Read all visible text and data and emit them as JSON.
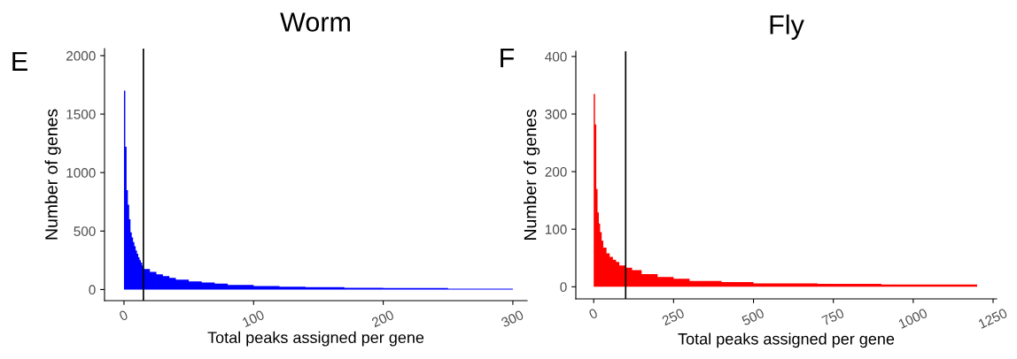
{
  "chart_data": [
    {
      "type": "histogram",
      "title": "Worm",
      "xlabel": "Total peaks assigned per gene",
      "ylabel": "Number of genes",
      "annotations": [
        "E"
      ],
      "color": "#0000ff",
      "bins": [
        0,
        1,
        2,
        3,
        4,
        5,
        6,
        7,
        8,
        9,
        10,
        11,
        12,
        13,
        14,
        15,
        20,
        25,
        30,
        35,
        40,
        50,
        60,
        70,
        80,
        100,
        120,
        140,
        170,
        200,
        250,
        300
      ],
      "values": [
        1700,
        1220,
        850,
        725,
        600,
        490,
        445,
        405,
        370,
        335,
        305,
        275,
        250,
        230,
        205,
        175,
        150,
        130,
        115,
        100,
        85,
        70,
        60,
        50,
        40,
        30,
        25,
        20,
        15,
        12,
        8
      ],
      "xlim": [
        -15,
        311
      ],
      "ylim": [
        -95,
        2060
      ],
      "xticks": [
        0,
        100,
        200,
        300
      ],
      "yticks": [
        0,
        500,
        1000,
        1500,
        2000
      ],
      "ref_lines": [
        {
          "axis": "x",
          "value": 15,
          "color": "#000000"
        }
      ],
      "grid": false
    },
    {
      "type": "histogram",
      "title": "Fly",
      "xlabel": "Total peaks assigned per gene",
      "ylabel": "Number of genes",
      "annotations": [
        "F"
      ],
      "color": "#ff0000",
      "bins": [
        0,
        4,
        8,
        12,
        16,
        20,
        25,
        30,
        40,
        50,
        60,
        70,
        80,
        100,
        120,
        150,
        200,
        250,
        300,
        400,
        500,
        700,
        900,
        1200
      ],
      "values": [
        335,
        282,
        170,
        129,
        110,
        95,
        80,
        68,
        58,
        52,
        47,
        43,
        37,
        33,
        29,
        22,
        17,
        14,
        10,
        8,
        6,
        5,
        4
      ],
      "xlim": [
        -56,
        1261
      ],
      "ylim": [
        -21,
        409
      ],
      "xticks": [
        0,
        250,
        500,
        750,
        1000,
        1250
      ],
      "yticks": [
        0,
        100,
        200,
        300,
        400
      ],
      "ref_lines": [
        {
          "axis": "x",
          "value": 100,
          "color": "#000000"
        }
      ],
      "grid": false
    }
  ]
}
